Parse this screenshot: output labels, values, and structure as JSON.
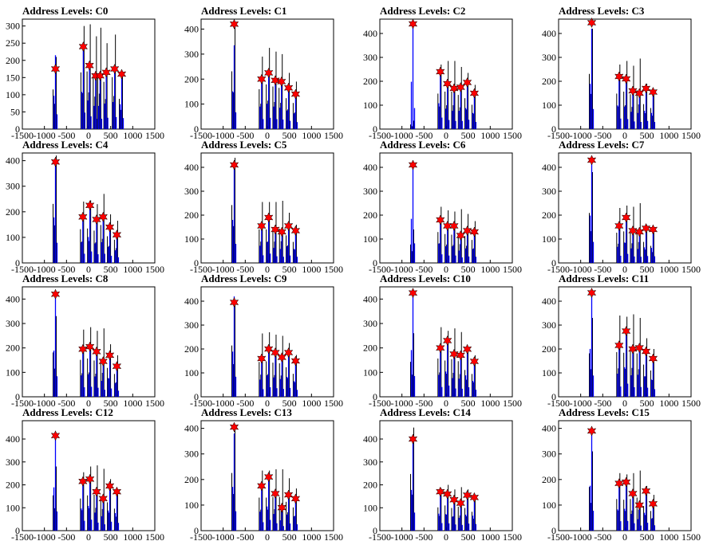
{
  "figure": {
    "layout": {
      "rows": 4,
      "cols": 4
    },
    "x_ticks": [
      -1500,
      -1000,
      -500,
      0,
      500,
      1000,
      1500
    ],
    "x_tick_labels": [
      "-1500",
      "-1000",
      "-500",
      "0",
      "500",
      "1000",
      "1500"
    ],
    "xlim": [
      -1500,
      1500
    ],
    "colors": {
      "black_hist": "#000000",
      "blue_hist": "#0000ff",
      "marker": "#ff0000",
      "marker_edge": "#000000"
    }
  },
  "chart_data": [
    {
      "type": "bar",
      "title": "Address Levels: C0",
      "ylim": [
        0,
        320
      ],
      "yticks": [
        0,
        50,
        100,
        150,
        200,
        250,
        300
      ],
      "ytick_labels": [
        "0",
        "50",
        "100",
        "150",
        "200",
        "250",
        "300"
      ],
      "peaks": {
        "x": [
          -750,
          -120,
          20,
          160,
          260,
          400,
          590,
          750
        ],
        "black": [
          210,
          300,
          305,
          270,
          295,
          250,
          275,
          160
        ],
        "blue": [
          215,
          240,
          185,
          150,
          150,
          165,
          175,
          160
        ],
        "stars": [
          175,
          240,
          185,
          155,
          155,
          165,
          175,
          160
        ]
      }
    },
    {
      "type": "bar",
      "title": "Address Levels: C1",
      "ylim": [
        0,
        440
      ],
      "yticks": [
        0,
        100,
        200,
        300,
        400
      ],
      "ytick_labels": [
        "0",
        "100",
        "200",
        "300",
        "400"
      ],
      "peaks": {
        "x": [
          -750,
          -130,
          30,
          180,
          320,
          480,
          640
        ],
        "black": [
          420,
          290,
          325,
          310,
          300,
          225,
          190
        ],
        "blue": [
          335,
          200,
          225,
          200,
          190,
          165,
          140
        ],
        "stars": [
          420,
          200,
          225,
          195,
          190,
          165,
          140
        ]
      }
    },
    {
      "type": "bar",
      "title": "Address Levels: C2",
      "ylim": [
        0,
        460
      ],
      "yticks": [
        0,
        100,
        200,
        300,
        400
      ],
      "ytick_labels": [
        "0",
        "100",
        "200",
        "300",
        "400"
      ],
      "peaks": {
        "x": [
          -750,
          -130,
          30,
          180,
          330,
          480,
          640
        ],
        "black": [
          35,
          270,
          285,
          285,
          260,
          235,
          185
        ],
        "blue": [
          440,
          240,
          190,
          170,
          170,
          195,
          150
        ],
        "stars": [
          440,
          240,
          190,
          170,
          175,
          195,
          150
        ]
      }
    },
    {
      "type": "bar",
      "title": "Address Levels: C3",
      "ylim": [
        0,
        460
      ],
      "yticks": [
        0,
        100,
        200,
        300,
        400
      ],
      "ytick_labels": [
        "0",
        "100",
        "200",
        "300",
        "400"
      ],
      "peaks": {
        "x": [
          -750,
          -130,
          30,
          180,
          330,
          480,
          640
        ],
        "black": [
          420,
          270,
          285,
          265,
          295,
          190,
          160
        ],
        "blue": [
          420,
          220,
          210,
          160,
          150,
          170,
          150
        ],
        "stars": [
          445,
          220,
          210,
          160,
          150,
          170,
          155
        ]
      }
    },
    {
      "type": "bar",
      "title": "Address Levels: C4",
      "ylim": [
        0,
        430
      ],
      "yticks": [
        0,
        100,
        200,
        300,
        400
      ],
      "ytick_labels": [
        "0",
        "100",
        "200",
        "300",
        "400"
      ],
      "peaks": {
        "x": [
          -750,
          -130,
          30,
          180,
          330,
          480,
          640
        ],
        "black": [
          420,
          240,
          245,
          230,
          270,
          190,
          165
        ],
        "blue": [
          395,
          180,
          225,
          170,
          180,
          140,
          110
        ],
        "stars": [
          395,
          180,
          225,
          170,
          180,
          140,
          110
        ]
      }
    },
    {
      "type": "bar",
      "title": "Address Levels: C5",
      "ylim": [
        0,
        460
      ],
      "yticks": [
        0,
        100,
        200,
        300,
        400
      ],
      "ytick_labels": [
        "0",
        "100",
        "200",
        "300",
        "400"
      ],
      "peaks": {
        "x": [
          -750,
          -130,
          30,
          180,
          330,
          480,
          640
        ],
        "black": [
          440,
          255,
          255,
          255,
          260,
          210,
          160
        ],
        "blue": [
          400,
          160,
          195,
          140,
          130,
          155,
          130
        ],
        "stars": [
          410,
          155,
          190,
          140,
          130,
          155,
          135
        ]
      }
    },
    {
      "type": "bar",
      "title": "Address Levels: C6",
      "ylim": [
        0,
        460
      ],
      "yticks": [
        0,
        100,
        200,
        300,
        400
      ],
      "ytick_labels": [
        "0",
        "100",
        "200",
        "300",
        "400"
      ],
      "peaks": {
        "x": [
          -750,
          -130,
          30,
          180,
          330,
          480,
          640
        ],
        "black": [
          140,
          235,
          220,
          215,
          225,
          205,
          175
        ],
        "blue": [
          410,
          180,
          155,
          155,
          115,
          135,
          130
        ],
        "stars": [
          410,
          180,
          155,
          155,
          115,
          135,
          130
        ]
      }
    },
    {
      "type": "bar",
      "title": "Address Levels: C7",
      "ylim": [
        0,
        460
      ],
      "yticks": [
        0,
        100,
        200,
        300,
        400
      ],
      "ytick_labels": [
        "0",
        "100",
        "200",
        "300",
        "400"
      ],
      "peaks": {
        "x": [
          -750,
          -130,
          30,
          180,
          330,
          480,
          640
        ],
        "black": [
          380,
          230,
          240,
          235,
          250,
          160,
          130
        ],
        "blue": [
          440,
          150,
          190,
          135,
          130,
          145,
          140
        ],
        "stars": [
          430,
          155,
          190,
          135,
          130,
          145,
          140
        ]
      }
    },
    {
      "type": "bar",
      "title": "Address Levels: C8",
      "ylim": [
        0,
        450
      ],
      "yticks": [
        0,
        100,
        200,
        300,
        400
      ],
      "ytick_labels": [
        "0",
        "100",
        "200",
        "300",
        "400"
      ],
      "peaks": {
        "x": [
          -750,
          -130,
          30,
          180,
          330,
          480,
          640
        ],
        "black": [
          330,
          275,
          285,
          270,
          280,
          215,
          170
        ],
        "blue": [
          420,
          195,
          205,
          185,
          145,
          170,
          125
        ],
        "stars": [
          420,
          195,
          205,
          185,
          145,
          170,
          125
        ]
      }
    },
    {
      "type": "bar",
      "title": "Address Levels: C9",
      "ylim": [
        0,
        460
      ],
      "yticks": [
        0,
        100,
        200,
        300,
        400
      ],
      "ytick_labels": [
        "0",
        "100",
        "200",
        "300",
        "400"
      ],
      "peaks": {
        "x": [
          -750,
          -130,
          30,
          180,
          330,
          480,
          640
        ],
        "black": [
          390,
          265,
          270,
          260,
          255,
          225,
          175
        ],
        "blue": [
          420,
          160,
          200,
          180,
          165,
          185,
          145
        ],
        "stars": [
          395,
          160,
          200,
          185,
          165,
          185,
          150
        ]
      }
    },
    {
      "type": "bar",
      "title": "Address Levels: C10",
      "ylim": [
        0,
        450
      ],
      "yticks": [
        0,
        100,
        200,
        300,
        400
      ],
      "ytick_labels": [
        "0",
        "100",
        "200",
        "300",
        "400"
      ],
      "peaks": {
        "x": [
          -750,
          -130,
          30,
          180,
          330,
          480,
          640
        ],
        "black": [
          260,
          285,
          270,
          280,
          265,
          200,
          170
        ],
        "blue": [
          425,
          200,
          230,
          170,
          165,
          195,
          145
        ],
        "stars": [
          425,
          200,
          230,
          175,
          170,
          195,
          145
        ]
      }
    },
    {
      "type": "bar",
      "title": "Address Levels: C11",
      "ylim": [
        0,
        460
      ],
      "yticks": [
        0,
        100,
        200,
        300,
        400
      ],
      "ytick_labels": [
        "0",
        "100",
        "200",
        "300",
        "400"
      ],
      "peaks": {
        "x": [
          -750,
          -130,
          30,
          180,
          330,
          480,
          640
        ],
        "black": [
          330,
          340,
          335,
          345,
          330,
          245,
          200
        ],
        "blue": [
          445,
          215,
          275,
          200,
          205,
          190,
          160
        ],
        "stars": [
          435,
          215,
          275,
          200,
          205,
          190,
          160
        ]
      }
    },
    {
      "type": "bar",
      "title": "Address Levels: C12",
      "ylim": [
        0,
        480
      ],
      "yticks": [
        0,
        100,
        200,
        300,
        400
      ],
      "ytick_labels": [
        "0",
        "100",
        "200",
        "300",
        "400"
      ],
      "peaks": {
        "x": [
          -750,
          -130,
          30,
          180,
          330,
          480,
          640
        ],
        "black": [
          280,
          255,
          280,
          285,
          270,
          225,
          175
        ],
        "blue": [
          420,
          215,
          240,
          175,
          140,
          195,
          170
        ],
        "stars": [
          415,
          215,
          225,
          170,
          140,
          195,
          170
        ]
      }
    },
    {
      "type": "bar",
      "title": "Address Levels: C13",
      "ylim": [
        0,
        430
      ],
      "yticks": [
        0,
        100,
        200,
        300,
        400
      ],
      "ytick_labels": [
        "0",
        "100",
        "200",
        "300",
        "400"
      ],
      "peaks": {
        "x": [
          -750,
          -130,
          30,
          180,
          330,
          480,
          640
        ],
        "black": [
          410,
          235,
          235,
          240,
          240,
          205,
          165
        ],
        "blue": [
          380,
          165,
          210,
          145,
          90,
          140,
          125
        ],
        "stars": [
          405,
          175,
          210,
          145,
          90,
          140,
          125
        ]
      }
    },
    {
      "type": "bar",
      "title": "Address Levels: C14",
      "ylim": [
        0,
        480
      ],
      "yticks": [
        0,
        100,
        200,
        300,
        400
      ],
      "ytick_labels": [
        "0",
        "100",
        "200",
        "300",
        "400"
      ],
      "peaks": {
        "x": [
          -750,
          -130,
          30,
          180,
          330,
          480,
          640
        ],
        "black": [
          450,
          185,
          200,
          180,
          190,
          180,
          150
        ],
        "blue": [
          395,
          165,
          160,
          135,
          125,
          155,
          145
        ],
        "stars": [
          400,
          170,
          160,
          135,
          120,
          155,
          145
        ]
      }
    },
    {
      "type": "bar",
      "title": "Address Levels: C15",
      "ylim": [
        0,
        430
      ],
      "yticks": [
        0,
        100,
        200,
        300,
        400
      ],
      "ytick_labels": [
        "0",
        "100",
        "200",
        "300",
        "400"
      ],
      "peaks": {
        "x": [
          -750,
          -130,
          30,
          180,
          330,
          480,
          640
        ],
        "black": [
          310,
          225,
          220,
          225,
          235,
          175,
          140
        ],
        "blue": [
          390,
          185,
          190,
          145,
          100,
          155,
          105
        ],
        "stars": [
          390,
          185,
          190,
          145,
          100,
          155,
          105
        ]
      }
    }
  ]
}
